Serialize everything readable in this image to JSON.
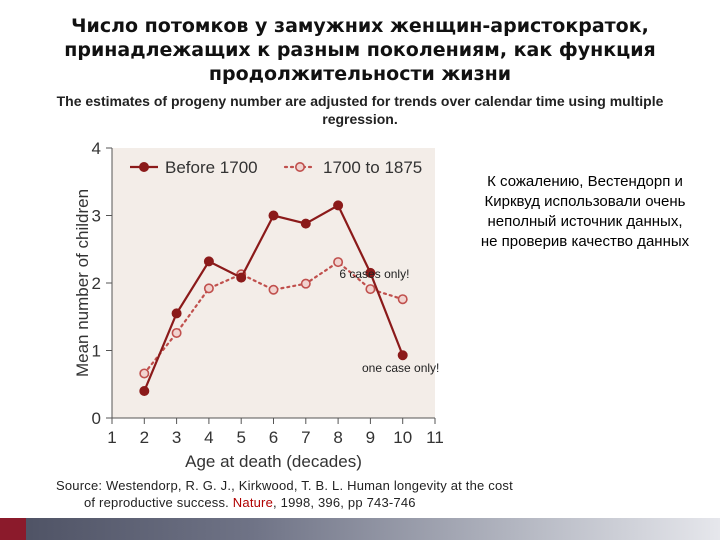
{
  "slide": {
    "title": "Число потомков у замужних женщин-аристократок, принадлежащих к разным поколениям, как функция продолжительности жизни",
    "subtitle": "The estimates of progeny number are adjusted for trends over calendar time using multiple regression.",
    "side_note": "К сожалению, Вестендорп и Кирквуд использовали очень неполный источник данных, не проверив качество данных",
    "source_prefix": "Source:  Westendorp, R. G. J., Kirkwood, T. B. L. Human longevity at the cost",
    "source_line2_start": "of reproductive success.  ",
    "source_journal": "Nature",
    "source_line2_end": ", 1998, 396, pp 743-746"
  },
  "chart_data": {
    "type": "line",
    "xlabel": "Age at death (decades)",
    "ylabel": "Mean number of children",
    "xlim": [
      1,
      11
    ],
    "ylim": [
      0,
      4
    ],
    "xticks": [
      1,
      2,
      3,
      4,
      5,
      6,
      7,
      8,
      9,
      10,
      11
    ],
    "yticks": [
      0,
      1,
      2,
      3,
      4
    ],
    "legend_position": "top",
    "colors": {
      "series1": "#8b1a1a",
      "series2": "#c0504d",
      "plot_bg": "#f3ede8"
    },
    "series": [
      {
        "name": "Before 1700",
        "style": "solid",
        "x": [
          2,
          3,
          4,
          5,
          6,
          7,
          8,
          9,
          10
        ],
        "values": [
          0.4,
          1.55,
          2.32,
          2.08,
          3.0,
          2.88,
          3.15,
          2.15,
          0.93
        ]
      },
      {
        "name": "1700 to 1875",
        "style": "dotted",
        "x": [
          2,
          3,
          4,
          5,
          6,
          7,
          8,
          9,
          10
        ],
        "values": [
          0.66,
          1.26,
          1.92,
          2.13,
          1.9,
          1.99,
          2.31,
          1.91,
          1.76
        ]
      }
    ],
    "annotations": [
      {
        "text": "6 cases only!",
        "x": 9,
        "y": 2.15
      },
      {
        "text": "one case only!",
        "x": 10,
        "y": 0.93
      }
    ]
  }
}
